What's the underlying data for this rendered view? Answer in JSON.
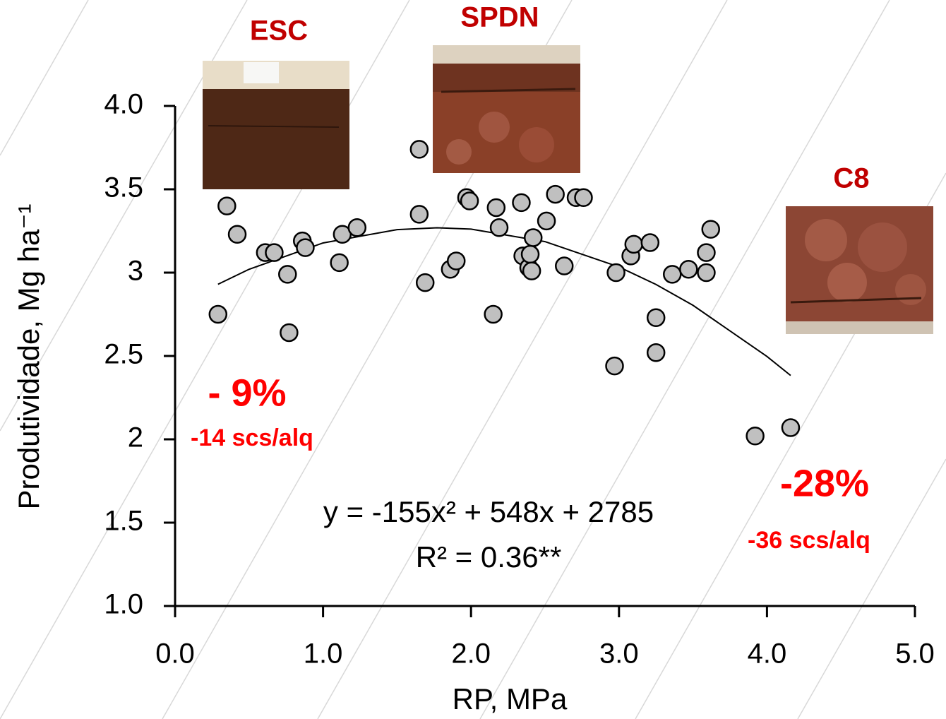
{
  "chart_data": {
    "type": "scatter",
    "xlabel": "RP,  MPa",
    "ylabel": "Produtividade, Mg ha⁻¹",
    "xlim": [
      0,
      5
    ],
    "ylim": [
      1,
      4
    ],
    "xticks": [
      {
        "value": 0,
        "label": "0.0"
      },
      {
        "value": 1,
        "label": "1.0"
      },
      {
        "value": 2,
        "label": "2.0"
      },
      {
        "value": 3,
        "label": "3.0"
      },
      {
        "value": 4,
        "label": "4.0"
      },
      {
        "value": 5,
        "label": "5.0"
      }
    ],
    "yticks": [
      {
        "value": 1,
        "label": "1.0"
      },
      1.5,
      2,
      2.5,
      3,
      3.5,
      {
        "value": 4,
        "label": "4.0"
      }
    ],
    "color": "#c0c0c0",
    "x": [
      0.29,
      0.35,
      0.42,
      0.61,
      0.67,
      0.76,
      0.77,
      0.86,
      0.88,
      1.11,
      1.13,
      1.23,
      1.65,
      1.65,
      1.69,
      1.86,
      1.9,
      1.97,
      1.99,
      2.15,
      2.17,
      2.19,
      2.34,
      2.35,
      2.39,
      2.4,
      2.41,
      2.42,
      2.51,
      2.57,
      2.63,
      2.71,
      2.76,
      2.97,
      2.98,
      3.08,
      3.1,
      3.21,
      3.25,
      3.25,
      3.36,
      3.47,
      3.59,
      3.59,
      3.62,
      3.92,
      4.16
    ],
    "values": [
      2.75,
      3.4,
      3.23,
      3.12,
      3.12,
      2.99,
      2.64,
      3.19,
      3.15,
      3.06,
      3.23,
      3.27,
      3.74,
      3.35,
      2.94,
      3.02,
      3.07,
      3.45,
      3.43,
      2.75,
      3.39,
      3.27,
      3.42,
      3.1,
      3.03,
      3.11,
      3.01,
      3.21,
      3.31,
      3.47,
      3.04,
      3.45,
      3.45,
      2.44,
      3.0,
      3.1,
      3.17,
      3.18,
      2.73,
      2.52,
      2.99,
      3.02,
      3.12,
      3.0,
      3.26,
      2.02,
      2.07
    ],
    "trendline": {
      "color": "#000000",
      "x": [
        0.29,
        0.5,
        1.0,
        1.5,
        1.77,
        2.0,
        2.5,
        3.0,
        3.25,
        3.5,
        4.0,
        4.16
      ],
      "values": [
        2.93,
        3.02,
        3.178,
        3.258,
        3.269,
        3.261,
        3.186,
        3.034,
        2.929,
        2.804,
        2.497,
        2.383
      ]
    },
    "equation": "y = -155x² + 548x + 2785",
    "r_squared": "R² = 0.36**",
    "annotations": {
      "esc": "ESC",
      "spdn": "SPDN",
      "c8": "C8",
      "esc_pct": "- 9%",
      "esc_bags": "-14 scs/alq",
      "c8_pct": "-28%",
      "c8_bags": "-36 scs/alq"
    }
  }
}
